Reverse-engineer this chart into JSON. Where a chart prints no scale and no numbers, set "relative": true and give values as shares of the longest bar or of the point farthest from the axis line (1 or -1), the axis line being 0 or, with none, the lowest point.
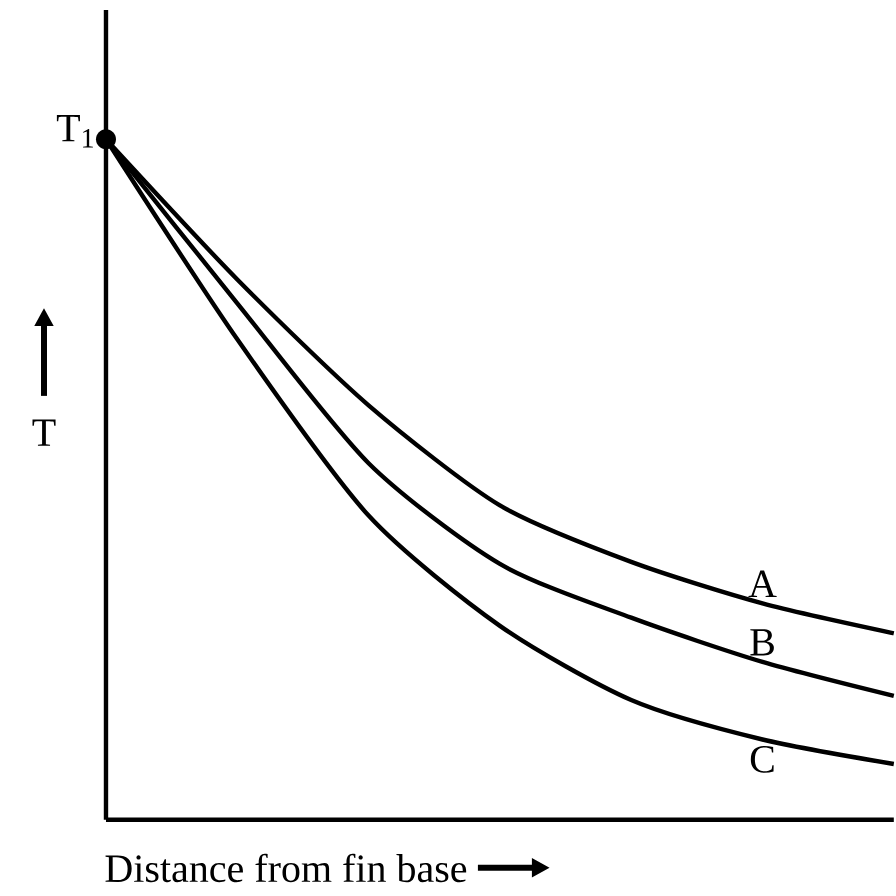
{
  "chart_data": {
    "type": "line",
    "relative": true,
    "xlabel": "Distance from fin base",
    "ylabel": "T",
    "categories": [
      null,
      null,
      null,
      null,
      null,
      null,
      null
    ],
    "series": [
      {
        "name": "A",
        "color": "#000000",
        "values": [
          1,
          0.794,
          0.609,
          0.462,
          0.379,
          0.318,
          0.274
        ]
      },
      {
        "name": "B",
        "color": "#000000",
        "values": [
          1,
          0.759,
          0.524,
          0.376,
          0.297,
          0.232,
          0.182
        ]
      },
      {
        "name": "C",
        "color": "#000000",
        "values": [
          1,
          0.706,
          0.447,
          0.285,
          0.176,
          0.118,
          0.082
        ]
      }
    ],
    "annotations": [
      "T$_{1}$"
    ],
    "marker": "none",
    "line_style": "solid",
    "legend": false
  }
}
